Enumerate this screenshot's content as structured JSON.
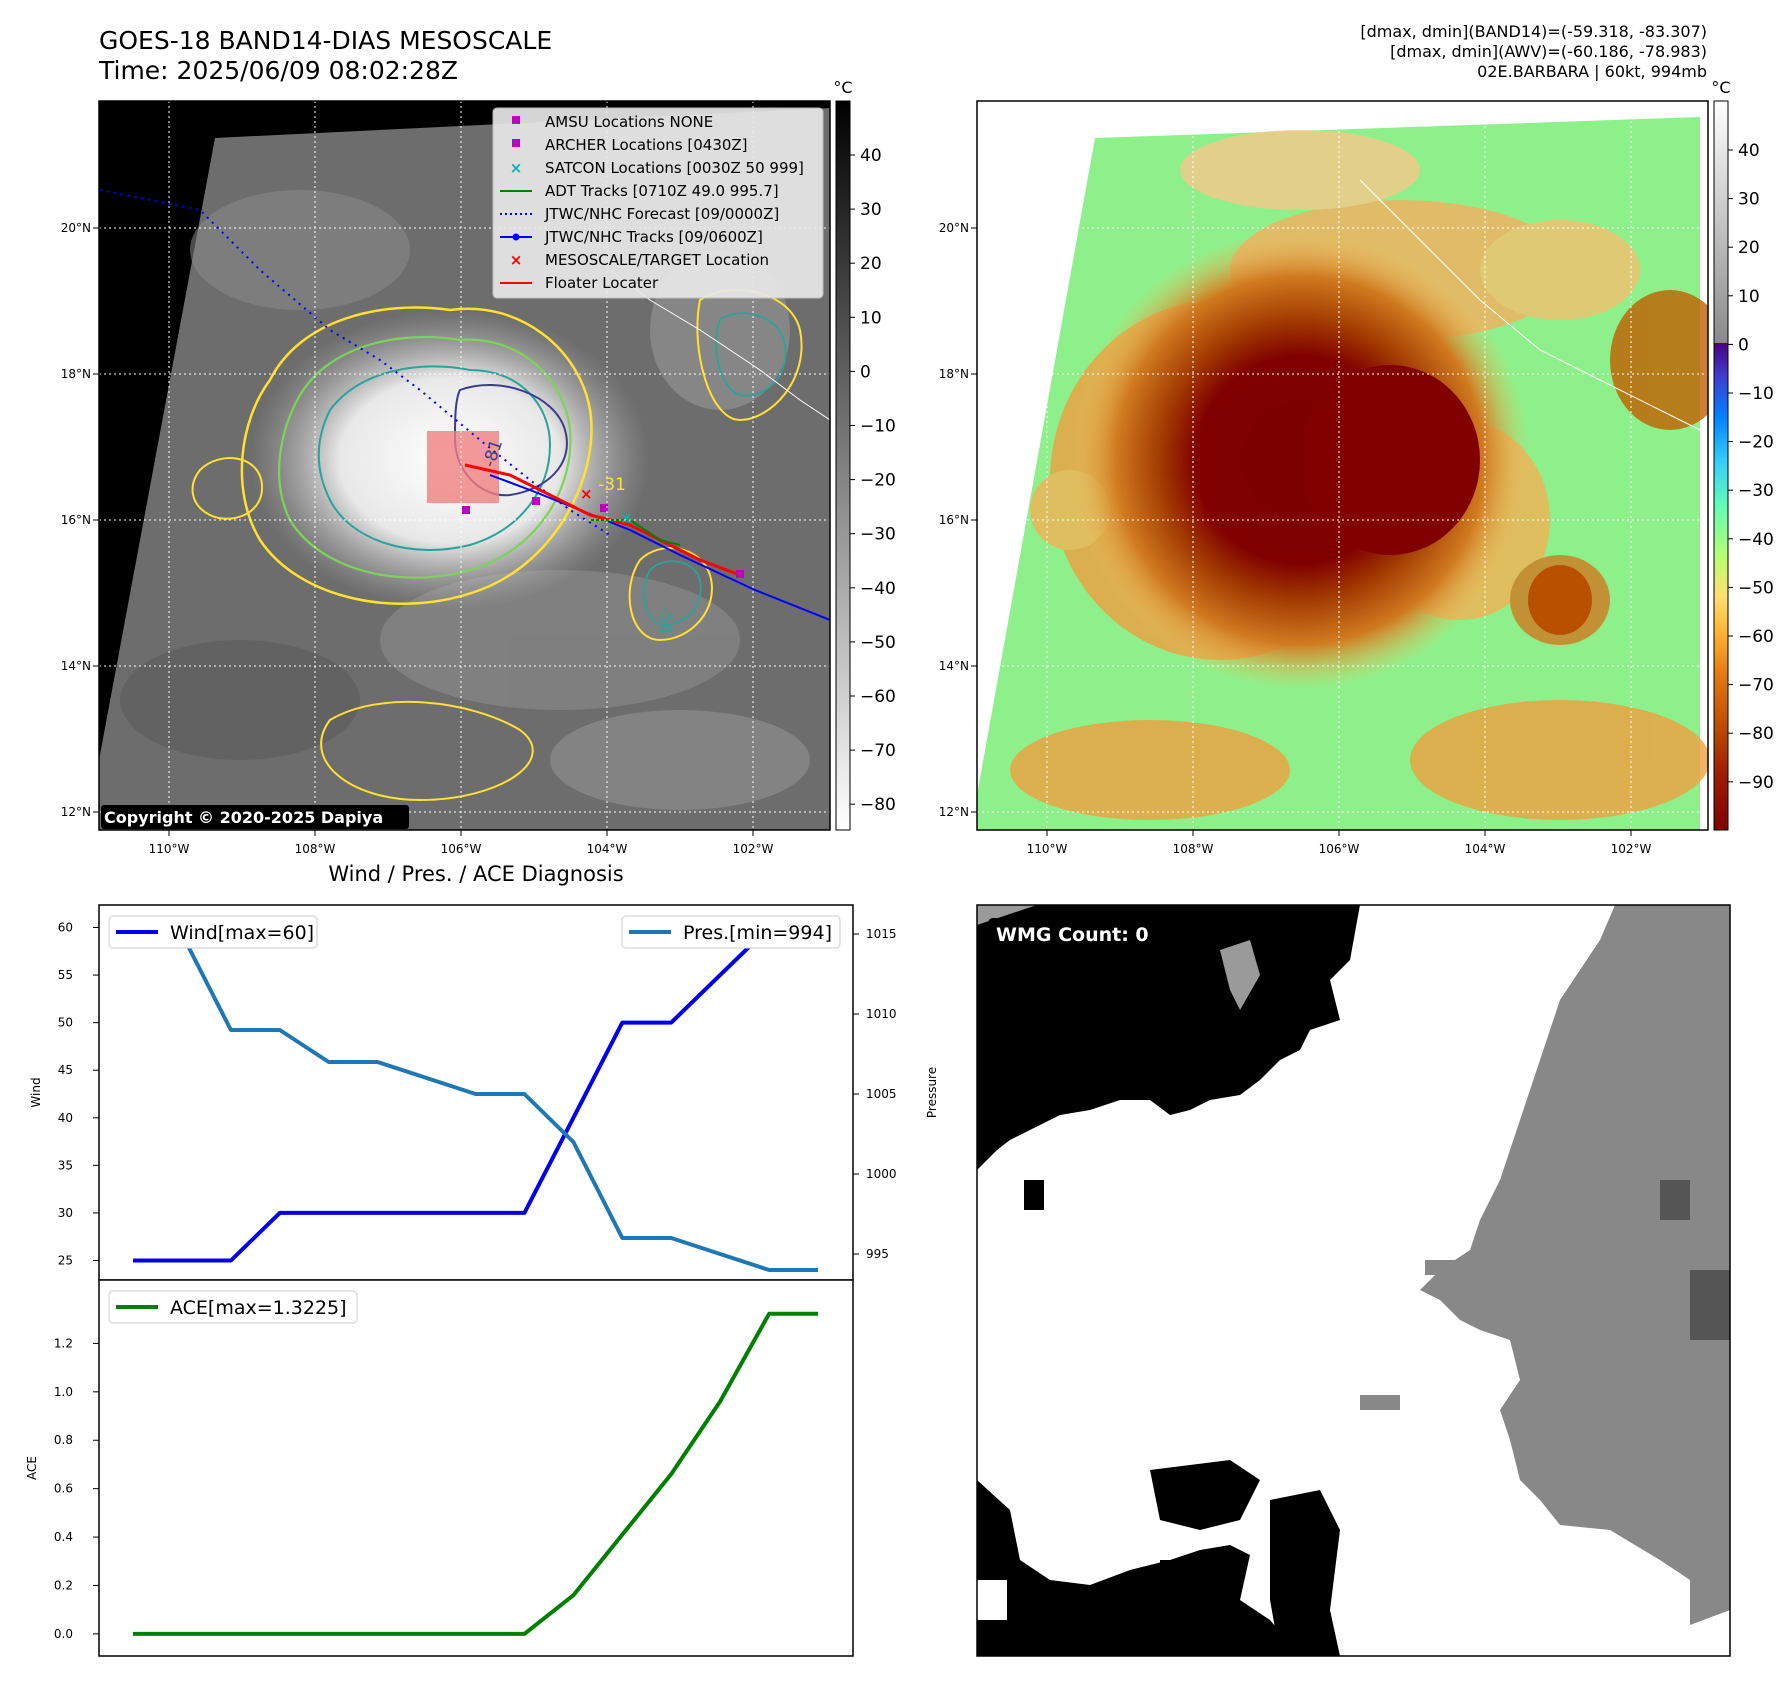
{
  "header": {
    "title_line1": "GOES-18 BAND14-DIAS MESOSCALE",
    "title_line2": "Time: 2025/06/09 08:02:28Z",
    "info_line1": "[dmax, dmin](BAND14)=(-59.318, -83.307)",
    "info_line2": "[dmax, dmin](AWV)=(-60.186, -78.983)",
    "info_line3": "02E.BARBARA | 60kt, 994mb"
  },
  "map": {
    "lat_labels": [
      "20°N",
      "18°N",
      "16°N",
      "14°N",
      "12°N"
    ],
    "lon_labels": [
      "110°W",
      "108°W",
      "106°W",
      "104°W",
      "102°W"
    ],
    "contour_labels": [
      "-81",
      "-31",
      "-54"
    ],
    "copyright": "Copyright © 2020-2025 Dapiya",
    "legend": [
      {
        "label": "AMSU Locations NONE",
        "marker": "square",
        "color": "#c000c0"
      },
      {
        "label": "ARCHER Locations [0430Z]",
        "marker": "square",
        "color": "#c000c0"
      },
      {
        "label": "SATCON Locations [0030Z 50 999]",
        "marker": "x",
        "color": "#00b4b4"
      },
      {
        "label": "ADT Tracks [0710Z 49.0 995.7]",
        "marker": "line",
        "color": "#008000"
      },
      {
        "label": "JTWC/NHC Forecast [09/0000Z]",
        "marker": "dotted",
        "color": "#0000ff"
      },
      {
        "label": "JTWC/NHC Tracks [09/0600Z]",
        "marker": "line-dot",
        "color": "#0000ff"
      },
      {
        "label": "MESOSCALE/TARGET Location",
        "marker": "x",
        "color": "#ff0000"
      },
      {
        "label": "Floater Locater",
        "marker": "line",
        "color": "#ff0000"
      }
    ]
  },
  "colorbars": {
    "unit": "°C",
    "gray_ticks": [
      "40",
      "30",
      "20",
      "10",
      "0",
      "−10",
      "−20",
      "−30",
      "−40",
      "−50",
      "−60",
      "−70",
      "−80"
    ],
    "color_ticks": [
      "40",
      "30",
      "20",
      "10",
      "0",
      "−10",
      "−20",
      "−30",
      "−40",
      "−50",
      "−60",
      "−70",
      "−80",
      "−90"
    ]
  },
  "wmg": {
    "label": "WMG Count: 0"
  },
  "chart_data": [
    {
      "type": "line",
      "title": "Wind / Pres. / ACE Diagnosis",
      "ylabel": "Wind",
      "y2label": "Pressure",
      "x": [
        0,
        1,
        2,
        3,
        4,
        5,
        6,
        7,
        8,
        9,
        10,
        11,
        12,
        13,
        14
      ],
      "ylim": [
        24,
        61
      ],
      "y2lim": [
        994,
        1016
      ],
      "yticks": [
        "25",
        "30",
        "35",
        "40",
        "45",
        "50",
        "55",
        "60"
      ],
      "y2ticks": [
        "995",
        "1000",
        "1005",
        "1010",
        "1015"
      ],
      "series": [
        {
          "name": "Wind[max=60]",
          "axis": "left",
          "color": "#0000ee",
          "values": [
            25,
            25,
            25,
            30,
            30,
            30,
            30,
            30,
            30,
            40,
            50,
            50,
            55,
            60,
            60
          ]
        },
        {
          "name": "Pres.[min=994]",
          "axis": "right",
          "color": "#1f77b4",
          "values": [
            1015,
            1015,
            1009,
            1009,
            1007,
            1007,
            1006,
            1005,
            1005,
            1002,
            996,
            996,
            995,
            994,
            994
          ]
        }
      ]
    },
    {
      "type": "line",
      "ylabel": "ACE",
      "x": [
        0,
        1,
        2,
        3,
        4,
        5,
        6,
        7,
        8,
        9,
        10,
        11,
        12,
        13,
        14
      ],
      "ylim": [
        -0.05,
        1.4
      ],
      "yticks": [
        "0.0",
        "0.2",
        "0.4",
        "0.6",
        "0.8",
        "1.0",
        "1.2"
      ],
      "series": [
        {
          "name": "ACE[max=1.3225]",
          "color": "#008000",
          "values": [
            0,
            0,
            0,
            0,
            0,
            0,
            0,
            0,
            0,
            0.16,
            0.41,
            0.66,
            0.96,
            1.3225,
            1.3225
          ]
        }
      ]
    }
  ]
}
